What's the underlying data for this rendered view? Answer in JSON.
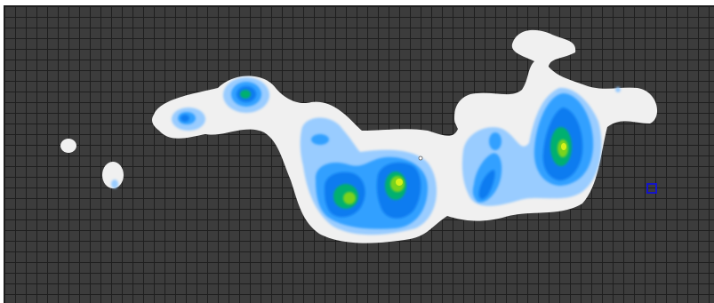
{
  "view": {
    "type": "occupancy-heatmap",
    "grid": true
  },
  "colors": {
    "background": "#3c3c3c",
    "gridline": "#1e1e1e",
    "free_space": "#f0f0f0",
    "level_1": "#99ccff",
    "level_2": "#33a0ff",
    "level_3": "#0a7cf0",
    "level_4": "#00b070",
    "level_5": "#7ad31f",
    "level_6": "#d6f21a",
    "marker": "#1414c8"
  },
  "legend": []
}
